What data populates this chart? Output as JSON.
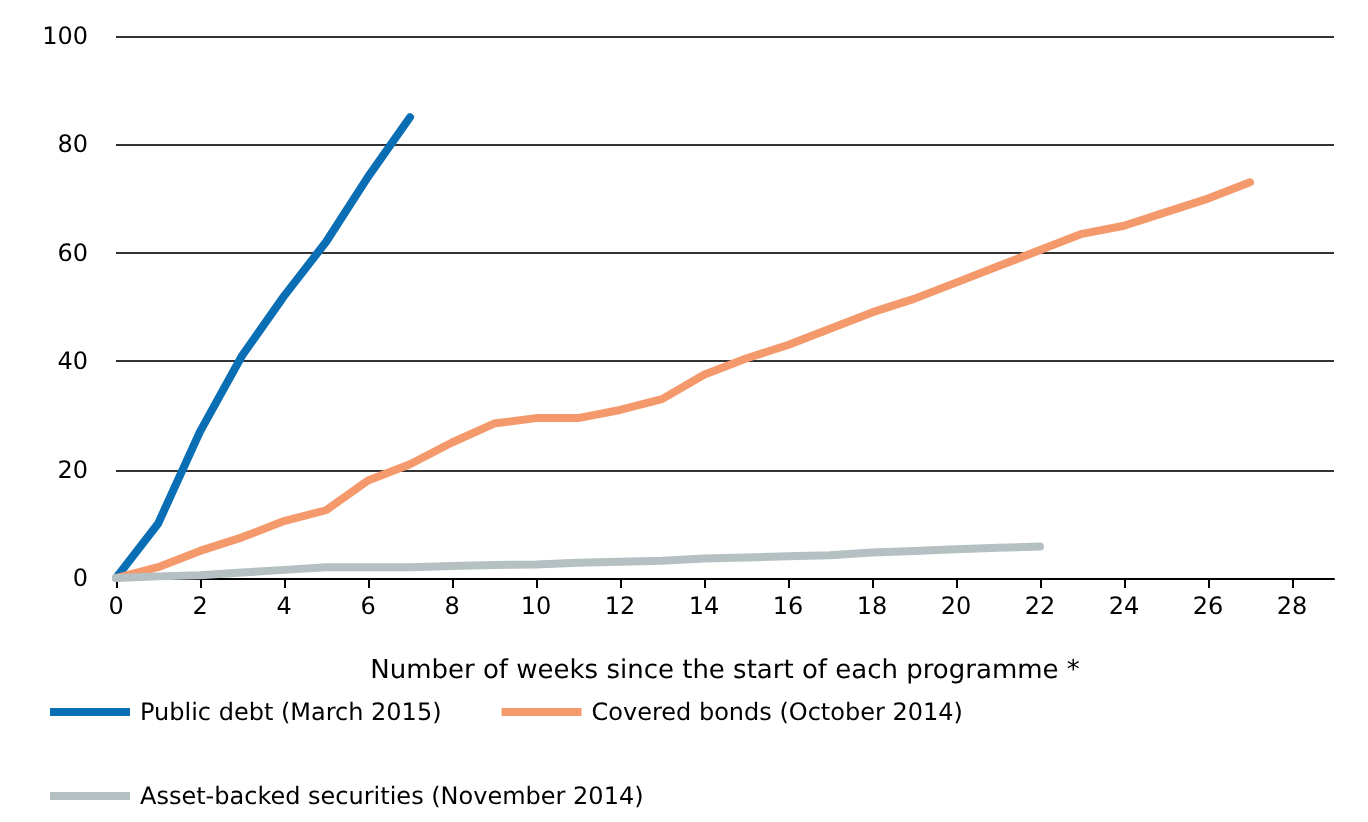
{
  "chart_data": {
    "type": "line",
    "xlabel": "Number of weeks since the start of each programme *",
    "xlim": [
      0,
      29
    ],
    "xticks": [
      0,
      2,
      4,
      6,
      8,
      10,
      12,
      14,
      16,
      18,
      20,
      22,
      24,
      26,
      28
    ],
    "ylim": [
      0,
      100
    ],
    "yticks": [
      0,
      20,
      40,
      60,
      80,
      100
    ],
    "grid": "y",
    "legend": "bottom",
    "marker": "none",
    "line_style": "solid",
    "series": [
      {
        "name": "Public debt (March 2015)",
        "color": "#0a6eb4",
        "x": [
          0,
          1,
          2,
          3,
          4,
          5,
          6,
          7
        ],
        "values": [
          0,
          10,
          27,
          41,
          52,
          62,
          74,
          85
        ]
      },
      {
        "name": "Covered bonds (October 2014)",
        "color": "#f4996b",
        "x": [
          0,
          1,
          2,
          3,
          4,
          5,
          6,
          7,
          8,
          9,
          10,
          11,
          12,
          13,
          14,
          15,
          16,
          17,
          18,
          19,
          20,
          21,
          22,
          23,
          24,
          25,
          26,
          27
        ],
        "values": [
          0,
          2,
          5,
          7.5,
          10.5,
          12.5,
          18,
          21,
          25,
          28.5,
          29.5,
          29.5,
          31,
          33,
          37.5,
          40.5,
          43,
          46,
          49,
          51.5,
          54.5,
          57.5,
          60.5,
          63.5,
          65,
          67.5,
          70,
          73
        ]
      },
      {
        "name": "Asset-backed securities (November 2014)",
        "color": "#b4c0c2",
        "x": [
          0,
          1,
          2,
          3,
          4,
          5,
          6,
          7,
          8,
          9,
          10,
          11,
          12,
          13,
          14,
          15,
          16,
          17,
          18,
          19,
          20,
          21,
          22
        ],
        "values": [
          0,
          0.3,
          0.5,
          1,
          1.5,
          2,
          2,
          2,
          2.2,
          2.4,
          2.5,
          2.8,
          3,
          3.2,
          3.6,
          3.8,
          4,
          4.2,
          4.7,
          5,
          5.3,
          5.6,
          5.8
        ]
      }
    ]
  }
}
